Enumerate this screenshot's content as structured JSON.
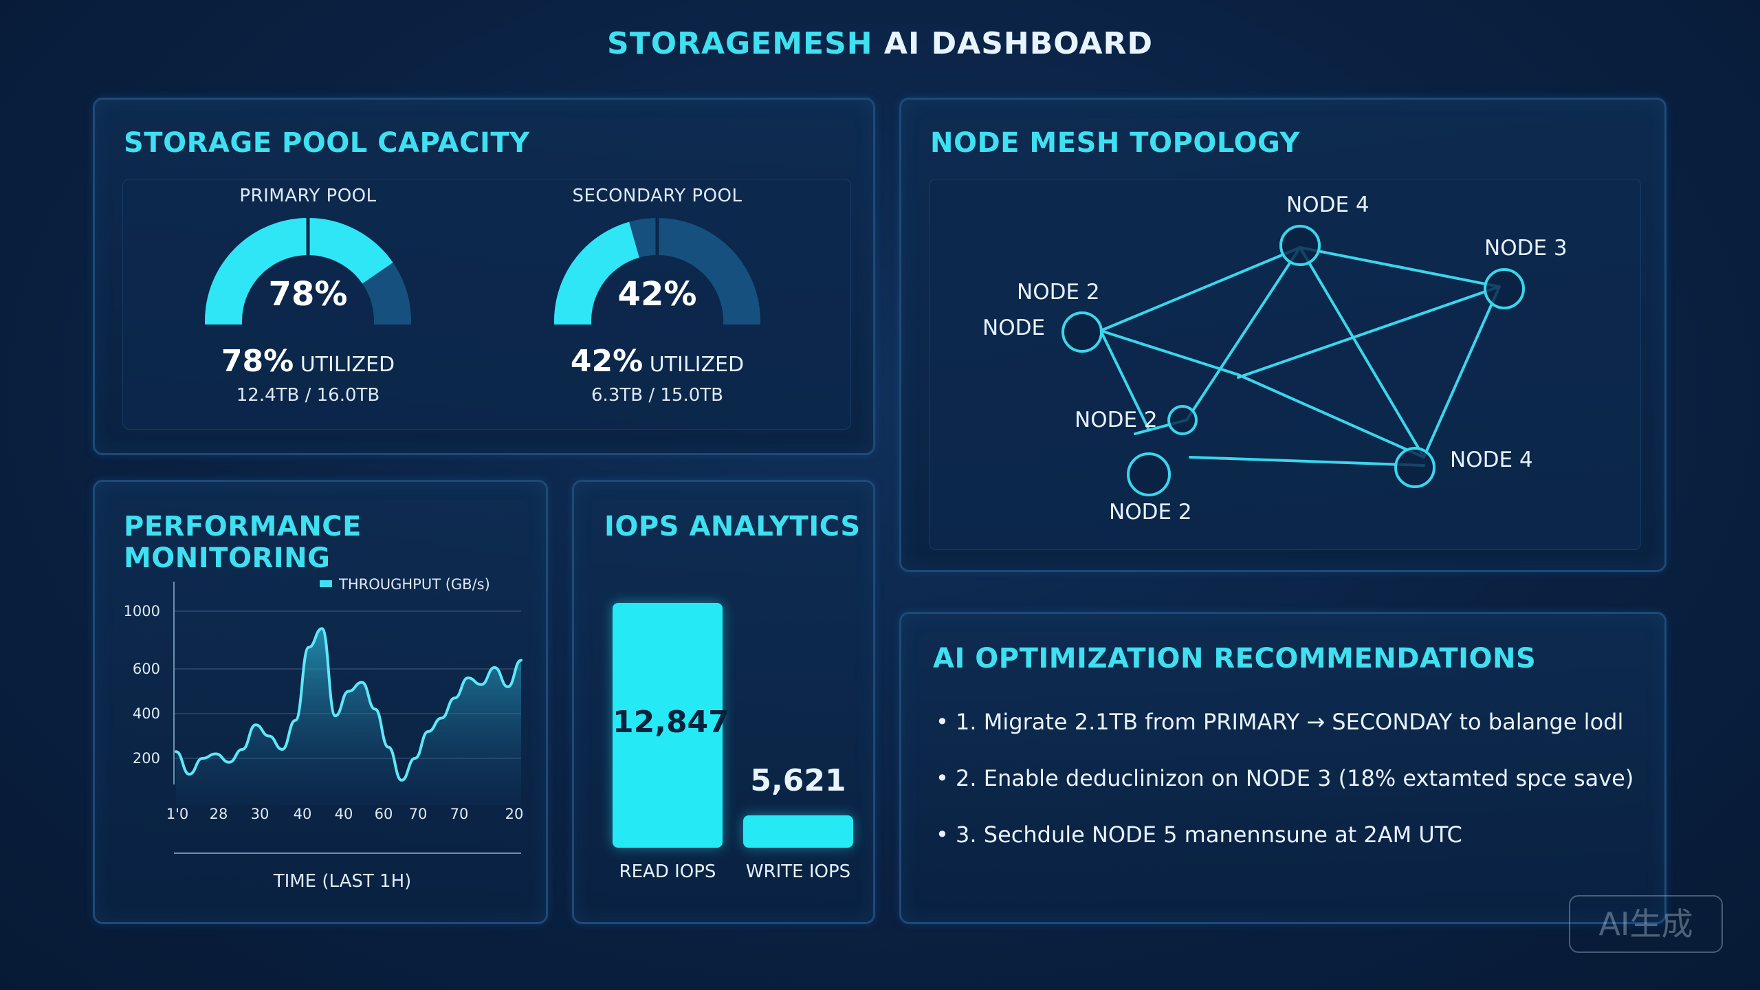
{
  "header": {
    "title_accent": "STORAGEMESH",
    "title_rest": " AI DASHBOARD"
  },
  "capacity": {
    "title": "STORAGE POOL CAPACITY",
    "pools": [
      {
        "label": "PRIMARY POOL",
        "pct_text": "78%",
        "util_pct": "78%",
        "util_word": " UTILIZED",
        "capacity": "12.4TB / 16.0TB",
        "fraction": 0.78
      },
      {
        "label": "SECONDARY POOL",
        "pct_text": "42%",
        "util_pct": "42%",
        "util_word": " UTILIZED",
        "capacity": "6.3TB / 15.0TB",
        "fraction": 0.42
      }
    ],
    "colors": {
      "fill": "#2ee6f5",
      "track": "#16507e"
    }
  },
  "topology": {
    "title": "NODE MESH TOPOLOGY",
    "labels": [
      "NODE 4",
      "NODE 3",
      "NODE 2",
      "NODE",
      "NODE 2",
      "NODE 4",
      "NODE 2"
    ]
  },
  "performance": {
    "title": "PERFORMANCE MONITORING",
    "legend": "THROUGHPUT (GB/s)",
    "xlabel": "TIME (LAST 1H)"
  },
  "chart_data": {
    "type": "area",
    "xlabel": "TIME (LAST 1H)",
    "ylabel": "",
    "series": [
      {
        "name": "THROUGHPUT (GB/s)",
        "values": [
          230,
          120,
          200,
          220,
          180,
          240,
          350,
          300,
          240,
          370,
          750,
          880,
          390,
          500,
          540,
          420,
          250,
          90,
          200,
          320,
          380,
          470,
          560,
          530,
          610,
          520,
          660
        ]
      }
    ],
    "y_ticks": [
      "200",
      "400",
      "600",
      "1000"
    ],
    "x_ticks": [
      "1'0",
      "28",
      "30",
      "40",
      "40",
      "60",
      "70",
      "70",
      "20"
    ],
    "ylim": [
      0,
      1100
    ],
    "grid": true,
    "legend_position": "top-right"
  },
  "iops": {
    "title": "IOPS ANALYTICS",
    "read": {
      "label": "READ IOPS",
      "value_text": "12,847",
      "value": 12847
    },
    "write": {
      "label": "WRITE IOPS",
      "value_text": "5,621",
      "value": 5621
    }
  },
  "recommendations": {
    "title": "AI OPTIMIZATION RECOMMENDATIONS",
    "items": [
      "• 1. Migrate 2.1TB from PRIMARY → SECONDAY to balange lodl",
      "• 2. Enable deduclinizon on NODE 3 (18% extamted spce save)",
      "• 3. Sechdule NODE 5 manennsune at 2AM UTC"
    ]
  },
  "watermark": "AI生成"
}
